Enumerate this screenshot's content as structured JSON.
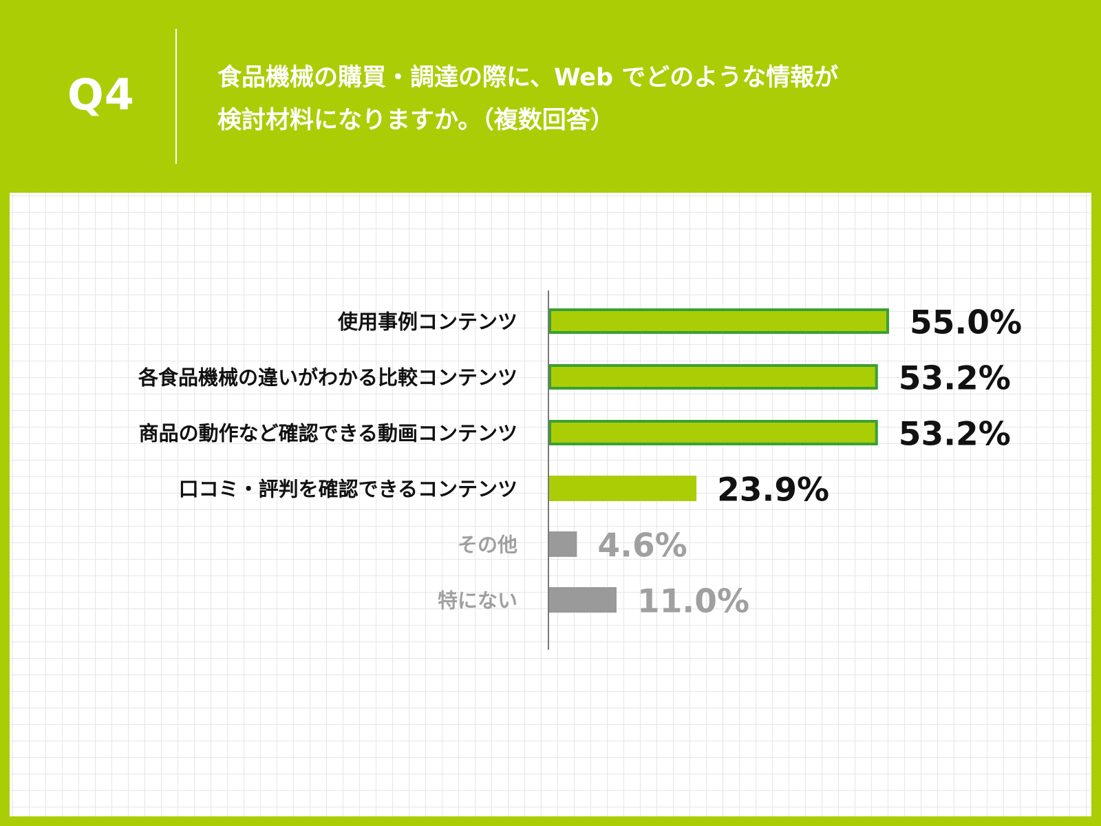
{
  "header": {
    "question_no": "Q4",
    "question_line1": "食品機械の購買・調達の際に、Web でどのような情報が",
    "question_line2": "検討材料になりますか。（複数回答）"
  },
  "colors": {
    "background": "#abcd06",
    "bar_fill": "#abcd06",
    "bar_outline": "#3aa035",
    "bar_gray": "#9a9a9a",
    "text_dark": "#111111",
    "text_gray": "#a0a0a0",
    "panel": "#ffffff",
    "grid": "#e6e6e6"
  },
  "chart_data": {
    "type": "bar",
    "orientation": "horizontal",
    "title": "",
    "xlabel": "",
    "ylabel": "",
    "unit": "%",
    "xlim": [
      0,
      60
    ],
    "grid": true,
    "categories": [
      "使用事例コンテンツ",
      "各食品機械の違いがわかる比較コンテンツ",
      "商品の動作など確認できる動画コンテンツ",
      "口コミ・評判を確認できるコンテンツ",
      "その他",
      "特にない"
    ],
    "values": [
      55.0,
      53.2,
      53.2,
      23.9,
      4.6,
      11.0
    ],
    "value_labels": [
      "55.0%",
      "53.2%",
      "53.2%",
      "23.9%",
      "4.6%",
      "11.0%"
    ],
    "bar_styles": [
      "outlined",
      "outlined",
      "outlined",
      "solid",
      "gray",
      "gray"
    ]
  }
}
